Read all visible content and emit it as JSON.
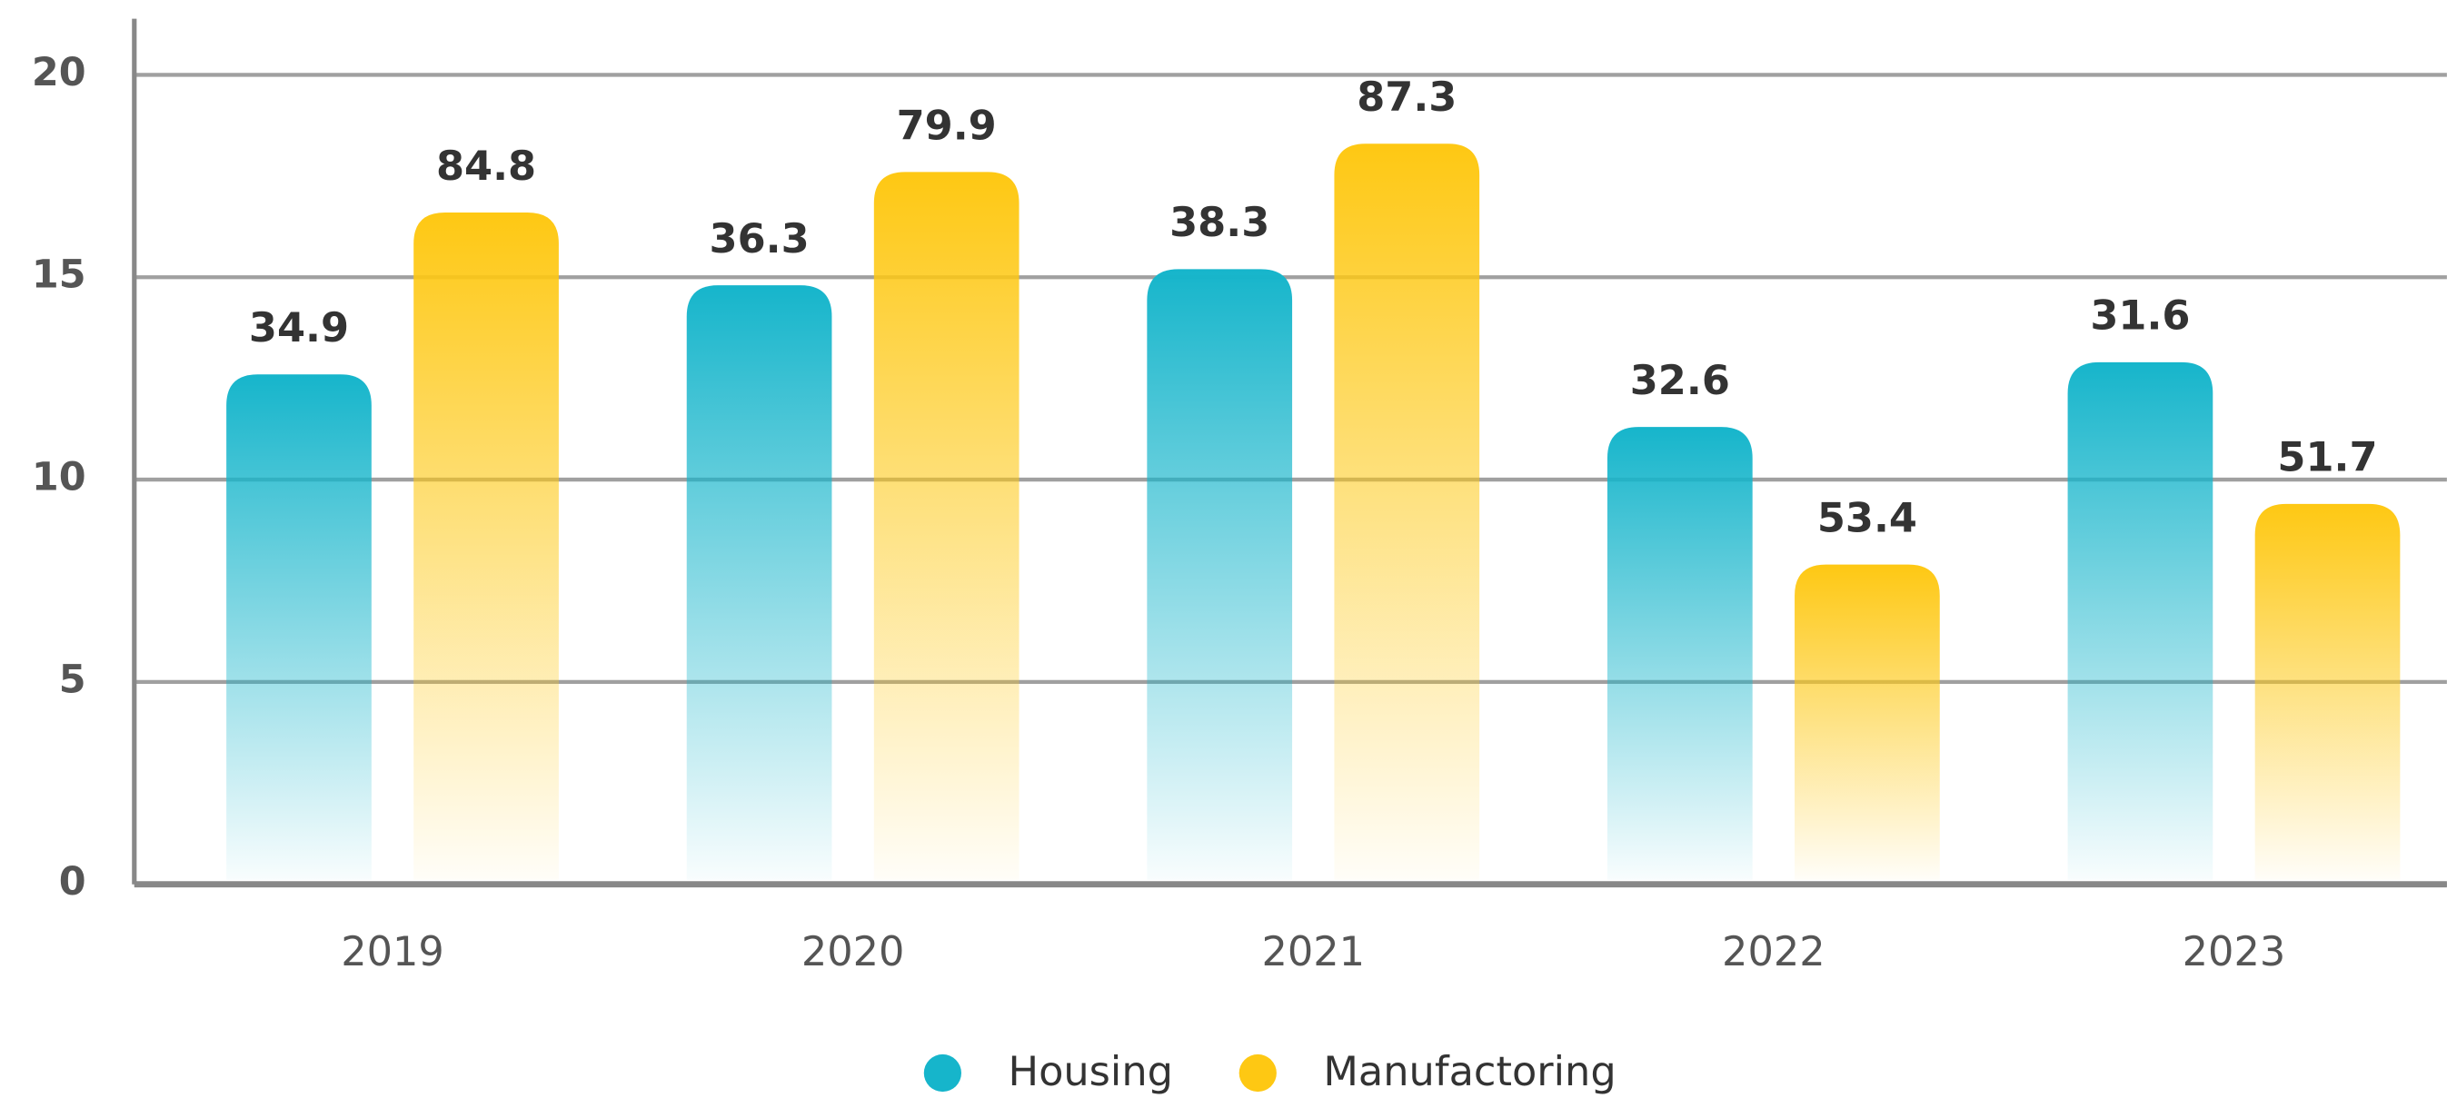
{
  "chart_data": {
    "type": "bar",
    "categories": [
      "2019",
      "2020",
      "2021",
      "2022",
      "2023"
    ],
    "series": [
      {
        "name": "Housing",
        "color": "#16b5cb",
        "values": [
          12.6,
          14.8,
          15.2,
          11.3,
          12.9
        ],
        "labels": [
          "34.9",
          "36.3",
          "38.3",
          "32.6",
          "31.6"
        ]
      },
      {
        "name": "Manufactoring",
        "color": "#fec813",
        "values": [
          16.6,
          17.6,
          18.3,
          7.9,
          9.4
        ],
        "labels": [
          "84.8",
          "79.9",
          "87.3",
          "53.4",
          "51.7"
        ]
      }
    ],
    "ylim": [
      0,
      20
    ],
    "yticks": [
      0,
      5,
      10,
      15,
      20
    ],
    "grid": true,
    "legend": "bottom"
  }
}
